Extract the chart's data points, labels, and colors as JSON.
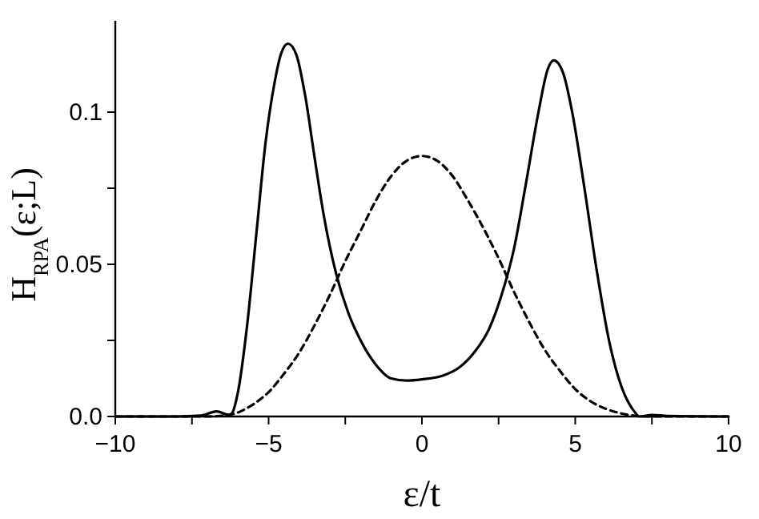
{
  "chart_data": {
    "type": "line",
    "xlabel": "ε/t",
    "ylabel": "H$_{RPA}$(ε;L)",
    "xlim": [
      -10,
      10
    ],
    "ylim": [
      0,
      0.13
    ],
    "xticks": [
      -10,
      {
        "value": -7.5,
        "label": null
      },
      -5,
      {
        "value": -2.5,
        "label": null
      },
      0,
      {
        "value": 2.5,
        "label": null
      },
      5,
      {
        "value": 7.5,
        "label": null
      },
      10
    ],
    "yticks": [
      {
        "value": 0,
        "label": "0.0"
      },
      {
        "value": 0.025,
        "label": null
      },
      0.05,
      {
        "value": 0.075,
        "label": null
      },
      0.1
    ],
    "grid": false,
    "marker": "none",
    "series": [
      {
        "color": "#000000",
        "line_style": "solid",
        "x": [
          -10,
          -8,
          -7.2,
          -6.7,
          -6.3,
          -6.2,
          -6.0,
          -5.7,
          -5.4,
          -5.1,
          -4.8,
          -4.6,
          -4.37,
          -4.1,
          -3.8,
          -3.5,
          -3.2,
          -2.8,
          -2.4,
          -2.0,
          -1.5,
          -1.0,
          -0.5,
          0,
          0.7,
          1.2,
          1.7,
          2.2,
          2.6,
          3.0,
          3.4,
          3.8,
          4.1,
          4.3,
          4.6,
          4.9,
          5.3,
          5.7,
          6.1,
          6.5,
          6.9,
          7.1,
          7.5,
          8,
          10
        ],
        "values": [
          0,
          0,
          0.0003,
          0.0017,
          0.0005,
          0.001,
          0.008,
          0.03,
          0.06,
          0.09,
          0.11,
          0.119,
          0.1225,
          0.119,
          0.105,
          0.085,
          0.066,
          0.047,
          0.034,
          0.025,
          0.017,
          0.0125,
          0.0118,
          0.0122,
          0.0135,
          0.016,
          0.021,
          0.029,
          0.04,
          0.055,
          0.077,
          0.1,
          0.114,
          0.117,
          0.113,
          0.1,
          0.075,
          0.048,
          0.025,
          0.01,
          0.002,
          0,
          0.0005,
          0.0002,
          0
        ]
      },
      {
        "color": "#000000",
        "line_style": "dashed",
        "x": [
          -10,
          -7,
          -6.3,
          -5.5,
          -5,
          -4.5,
          -4,
          -3.5,
          -3,
          -2.5,
          -2,
          -1.5,
          -1,
          -0.5,
          0,
          0.5,
          1,
          1.5,
          2,
          2.5,
          3,
          3.5,
          4,
          4.5,
          5,
          5.5,
          6,
          6.5,
          7,
          7.2,
          10
        ],
        "values": [
          0,
          0,
          0.0005,
          0.004,
          0.008,
          0.014,
          0.021,
          0.03,
          0.04,
          0.051,
          0.061,
          0.071,
          0.079,
          0.084,
          0.0856,
          0.084,
          0.079,
          0.071,
          0.062,
          0.052,
          0.041,
          0.031,
          0.022,
          0.015,
          0.009,
          0.005,
          0.0025,
          0.001,
          0.0002,
          0,
          0
        ]
      }
    ]
  }
}
